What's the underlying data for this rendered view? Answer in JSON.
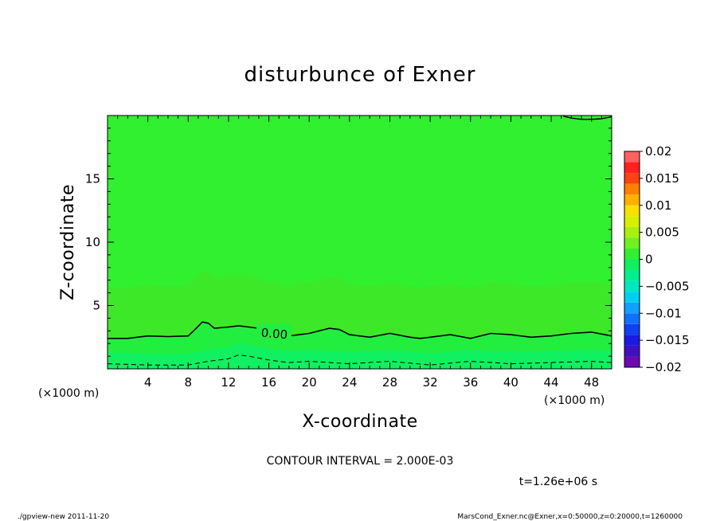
{
  "chart_data": {
    "type": "contour",
    "title": "disturbunce of Exner",
    "xlabel": "X-coordinate",
    "ylabel": "Z-coordinate",
    "x_unit_label": "(×1000 m)",
    "y_unit_label": "(×1000 m)",
    "xlim": [
      0,
      50
    ],
    "ylim": [
      0,
      20
    ],
    "x_ticks": [
      4,
      8,
      12,
      16,
      20,
      24,
      28,
      32,
      36,
      40,
      44,
      48
    ],
    "x_tick_labels": [
      "4",
      "8",
      "12",
      "16",
      "20",
      "24",
      "28",
      "32",
      "36",
      "40",
      "44",
      "48"
    ],
    "y_ticks": [
      5,
      10,
      15
    ],
    "y_tick_labels": [
      "5",
      "10",
      "15"
    ],
    "contour_label": "0.00",
    "contour_interval_text": "CONTOUR INTERVAL = 2.000E-03",
    "time_text": "t=1.26e+06 s",
    "zero_contour": {
      "x": [
        0,
        2,
        4,
        6,
        8,
        8.8,
        9.4,
        10.0,
        10.6,
        12,
        13,
        14,
        15,
        16,
        18,
        20,
        22,
        23,
        24,
        26,
        28,
        30,
        31,
        32,
        34,
        36,
        38,
        40,
        42,
        44,
        46,
        48,
        50
      ],
      "z": [
        2.4,
        2.4,
        2.6,
        2.55,
        2.6,
        3.2,
        3.7,
        3.6,
        3.2,
        3.3,
        3.4,
        3.3,
        3.2,
        2.8,
        2.6,
        2.8,
        3.2,
        3.1,
        2.7,
        2.5,
        2.8,
        2.5,
        2.4,
        2.5,
        2.7,
        2.4,
        2.8,
        2.7,
        2.5,
        2.6,
        2.8,
        2.9,
        2.6
      ]
    },
    "negative_contour": {
      "x": [
        0,
        4,
        8,
        10,
        12,
        13,
        14,
        16,
        18,
        20,
        24,
        28,
        32,
        36,
        40,
        44,
        48,
        50
      ],
      "z": [
        0.4,
        0.3,
        0.3,
        0.6,
        0.8,
        1.1,
        1.0,
        0.7,
        0.5,
        0.6,
        0.4,
        0.6,
        0.3,
        0.6,
        0.4,
        0.5,
        0.6,
        0.5
      ]
    },
    "top_contour": {
      "x": [
        45.2,
        46,
        47,
        48,
        49,
        50
      ],
      "z": [
        19.95,
        19.8,
        19.7,
        19.7,
        19.75,
        19.9
      ]
    },
    "colorbar": {
      "levels": [
        -0.02,
        -0.018,
        -0.016,
        -0.014,
        -0.012,
        -0.01,
        -0.008,
        -0.006,
        -0.004,
        -0.002,
        0,
        0.002,
        0.004,
        0.006,
        0.008,
        0.01,
        0.012,
        0.014,
        0.016,
        0.018,
        0.02
      ],
      "colors": [
        "#6a0ab0",
        "#4010c0",
        "#1a1ae0",
        "#1040f0",
        "#1070ff",
        "#10a0ff",
        "#00d0f0",
        "#00e8c0",
        "#00f090",
        "#10f060",
        "#30f030",
        "#70f020",
        "#a8f010",
        "#d8f000",
        "#f8e000",
        "#ffb000",
        "#ff8000",
        "#ff4010",
        "#ff2020",
        "#ff6060"
      ],
      "tick_values": [
        0.02,
        0.015,
        0.01,
        0.005,
        0,
        -0.005,
        -0.01,
        -0.015,
        -0.02
      ],
      "tick_labels": [
        "0.02",
        "0.015",
        "0.01",
        "0.005",
        "0",
        "−0.005",
        "−0.01",
        "−0.015",
        "−0.02"
      ]
    }
  },
  "footer": {
    "left": "./gpview-new   2011-11-20",
    "right": "MarsCond_Exner.nc@Exner,x=0:50000,z=0:20000,t=1260000"
  }
}
